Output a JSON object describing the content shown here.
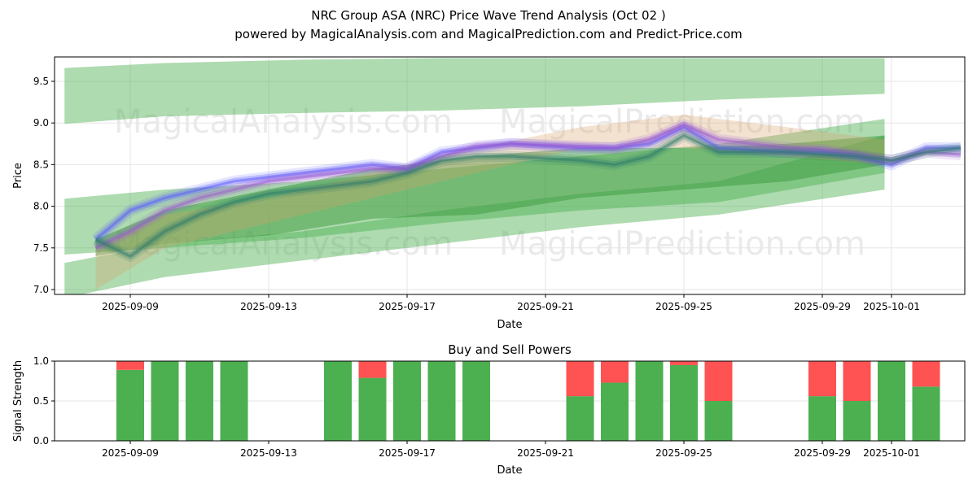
{
  "chart_data": [
    {
      "type": "area",
      "title": "NRC Group ASA (NRC) Price Wave Trend Analysis (Oct 02 )",
      "subtitle": "powered by MagicalAnalysis.com and MagicalPrediction.com and Predict-Price.com",
      "xlabel": "Date",
      "ylabel": "Price",
      "ylim": [
        6.95,
        9.8
      ],
      "xlim": [
        "2025-09-06",
        "2025-10-04"
      ],
      "xticks": [
        "2025-09-09",
        "2025-09-13",
        "2025-09-17",
        "2025-09-21",
        "2025-09-25",
        "2025-09-29",
        "2025-10-01"
      ],
      "yticks": [
        "7.0",
        "7.5",
        "8.0",
        "8.5",
        "9.0",
        "9.5"
      ],
      "grid": true,
      "watermarks": [
        "MagicalAnalysis.com",
        "MagicalPrediction.com"
      ],
      "bands": [
        {
          "color": "#4caf50",
          "opacity": 0.45,
          "x": [
            0.1,
            3,
            7,
            11,
            15,
            19,
            23.8
          ],
          "upper": [
            9.66,
            9.72,
            9.76,
            9.78,
            9.78,
            9.78,
            9.78
          ],
          "lower": [
            8.99,
            9.08,
            9.12,
            9.15,
            9.2,
            9.28,
            9.35
          ]
        },
        {
          "color": "#4caf50",
          "opacity": 0.45,
          "x": [
            0.1,
            3,
            7,
            11,
            15,
            19,
            23.8
          ],
          "upper": [
            8.09,
            8.2,
            8.3,
            8.45,
            8.6,
            8.75,
            9.05
          ],
          "lower": [
            7.42,
            7.5,
            7.62,
            7.8,
            7.95,
            8.05,
            8.4
          ]
        },
        {
          "color": "#4caf50",
          "opacity": 0.45,
          "x": [
            0.1,
            3,
            7,
            11,
            15,
            19,
            23.8
          ],
          "upper": [
            7.32,
            7.55,
            7.7,
            7.95,
            8.15,
            8.3,
            8.85
          ],
          "lower": [
            6.9,
            7.15,
            7.35,
            7.55,
            7.75,
            7.9,
            8.2
          ]
        },
        {
          "color": "#3a9a3a",
          "opacity": 0.5,
          "x": [
            1,
            3,
            6,
            9,
            12,
            15,
            18,
            21,
            23.8
          ],
          "upper": [
            7.6,
            7.95,
            8.2,
            8.45,
            8.6,
            8.7,
            8.7,
            8.75,
            8.85
          ],
          "lower": [
            7.4,
            7.55,
            7.65,
            7.85,
            7.9,
            8.1,
            8.2,
            8.3,
            8.5
          ]
        },
        {
          "color": "#d9a066",
          "opacity": 0.3,
          "x": [
            1,
            3,
            6,
            9,
            12,
            15,
            18,
            21,
            23.8
          ],
          "upper": [
            7.5,
            7.9,
            8.1,
            8.4,
            8.7,
            8.95,
            9.1,
            8.95,
            8.8
          ],
          "lower": [
            7.0,
            7.5,
            7.8,
            8.1,
            8.4,
            8.7,
            8.7,
            8.6,
            8.5
          ]
        }
      ],
      "series": [
        {
          "name": "wave-blue",
          "color": "#5a5aff",
          "x": [
            1,
            2,
            3,
            4,
            5,
            6,
            8,
            9,
            10,
            11,
            12,
            13,
            15,
            16,
            17,
            18,
            19,
            21,
            22,
            23,
            24,
            25,
            26
          ],
          "values": [
            7.6,
            7.95,
            8.1,
            8.2,
            8.3,
            8.35,
            8.45,
            8.5,
            8.45,
            8.65,
            8.7,
            8.75,
            8.7,
            8.7,
            8.75,
            8.95,
            8.7,
            8.65,
            8.65,
            8.6,
            8.5,
            8.7,
            8.7
          ]
        },
        {
          "name": "wave-purple",
          "color": "#9a5ad0",
          "x": [
            1,
            2,
            3,
            4,
            5,
            6,
            8,
            9,
            10,
            11,
            12,
            13,
            15,
            16,
            17,
            18,
            19,
            21,
            22,
            23,
            24,
            25,
            26
          ],
          "values": [
            7.5,
            7.7,
            7.95,
            8.1,
            8.2,
            8.3,
            8.4,
            8.45,
            8.45,
            8.6,
            8.72,
            8.75,
            8.72,
            8.7,
            8.8,
            8.98,
            8.8,
            8.7,
            8.68,
            8.62,
            8.55,
            8.65,
            8.62
          ]
        },
        {
          "name": "wave-teal",
          "color": "#2e7a6a",
          "x": [
            1,
            2,
            3,
            4,
            5,
            6,
            8,
            9,
            10,
            11,
            12,
            13,
            15,
            16,
            17,
            18,
            19,
            21,
            22,
            23,
            24,
            25,
            26
          ],
          "values": [
            7.6,
            7.4,
            7.7,
            7.9,
            8.05,
            8.15,
            8.25,
            8.3,
            8.4,
            8.55,
            8.6,
            8.6,
            8.55,
            8.5,
            8.6,
            8.85,
            8.65,
            8.65,
            8.62,
            8.6,
            8.55,
            8.65,
            8.7
          ]
        }
      ]
    },
    {
      "type": "bar",
      "title": "Buy and Sell Powers",
      "xlabel": "Date",
      "ylabel": "Signal Strength",
      "ylim": [
        0,
        1
      ],
      "yticks": [
        "0.0",
        "0.5",
        "1.0"
      ],
      "xticks": [
        "2025-09-09",
        "2025-09-13",
        "2025-09-17",
        "2025-09-21",
        "2025-09-25",
        "2025-09-29",
        "2025-10-01"
      ],
      "categories": [
        "2025-09-09",
        "2025-09-10",
        "2025-09-11",
        "2025-09-12",
        "2025-09-15",
        "2025-09-16",
        "2025-09-17",
        "2025-09-18",
        "2025-09-19",
        "2025-09-22",
        "2025-09-23",
        "2025-09-24",
        "2025-09-25",
        "2025-09-26",
        "2025-09-29",
        "2025-09-30",
        "2025-10-01",
        "2025-10-02"
      ],
      "series": [
        {
          "name": "Buy",
          "color": "#4caf50",
          "values": [
            0.89,
            1,
            1,
            1,
            1,
            0.79,
            1,
            1,
            1,
            0.56,
            0.73,
            1,
            0.95,
            0.5,
            0.56,
            0.5,
            1,
            0.68
          ]
        },
        {
          "name": "Sell",
          "color": "#ff5252",
          "values": [
            0.11,
            0,
            0,
            0,
            0,
            0.21,
            0,
            0,
            0,
            0.44,
            0.27,
            0,
            0.05,
            0.5,
            0.44,
            0.5,
            0,
            0.32
          ]
        }
      ]
    }
  ]
}
